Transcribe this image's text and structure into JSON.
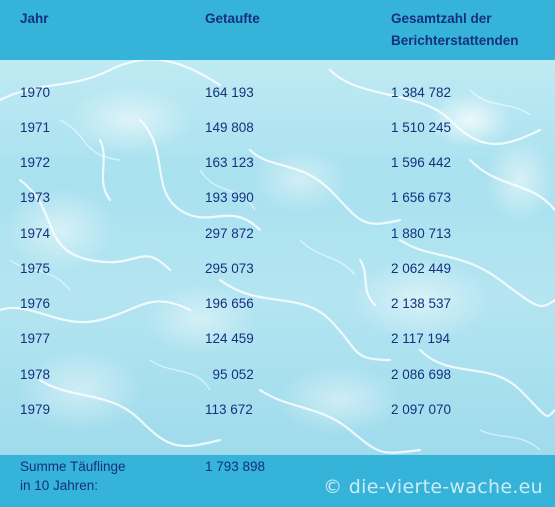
{
  "table": {
    "headers": {
      "year": "Jahr",
      "baptized": "Getaufte",
      "total_line1": "Gesamtzahl der",
      "total_line2": "Berichterstattenden"
    },
    "rows": [
      {
        "year": "1970",
        "baptized": "164 193",
        "total": "1 384 782"
      },
      {
        "year": "1971",
        "baptized": "149 808",
        "total": "1 510 245"
      },
      {
        "year": "1972",
        "baptized": "163 123",
        "total": "1 596 442"
      },
      {
        "year": "1973",
        "baptized": "193 990",
        "total": "1 656 673"
      },
      {
        "year": "1974",
        "baptized": "297 872",
        "total": "1 880 713"
      },
      {
        "year": "1975",
        "baptized": "295 073",
        "total": "2 062 449"
      },
      {
        "year": "1976",
        "baptized": "196 656",
        "total": "2 138 537"
      },
      {
        "year": "1977",
        "baptized": "124 459",
        "total": "2 117 194"
      },
      {
        "year": "1978",
        "baptized": "  95 052",
        "total": "2 086 698"
      },
      {
        "year": "1979",
        "baptized": "113 672",
        "total": "2 097 070"
      }
    ],
    "summary": {
      "label_line1": "Summe Täuflinge",
      "label_line2": "in 10 Jahren:",
      "value": "1 793 898"
    }
  },
  "watermark": "© die-vierte-wache.eu"
}
